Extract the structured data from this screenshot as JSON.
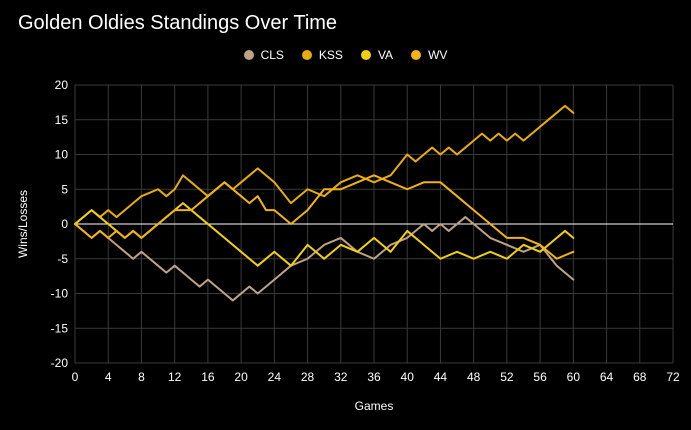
{
  "chart_data": {
    "type": "line",
    "title": "Golden Oldies Standings Over Time",
    "xlabel": "Games",
    "ylabel": "Wins/Losses",
    "xlim": [
      0,
      72
    ],
    "ylim": [
      -20,
      20
    ],
    "xticks": [
      0,
      4,
      8,
      12,
      16,
      20,
      24,
      28,
      32,
      36,
      40,
      44,
      48,
      52,
      56,
      60,
      64,
      68,
      72
    ],
    "yticks": [
      20,
      15,
      10,
      5,
      0,
      -5,
      -10,
      -15,
      -20
    ],
    "grid": true,
    "legend_position": "top-center",
    "series": [
      {
        "name": "CLS",
        "color": "#bfa283",
        "x": [
          0,
          2,
          3,
          4,
          5,
          6,
          7,
          8,
          10,
          11,
          12,
          13,
          14,
          15,
          16,
          17,
          18,
          19,
          20,
          21,
          22,
          24,
          26,
          28,
          30,
          32,
          34,
          36,
          38,
          40,
          42,
          43,
          44,
          45,
          46,
          47,
          48,
          50,
          52,
          54,
          56,
          58,
          60
        ],
        "values": [
          0,
          -2,
          -1,
          -2,
          -3,
          -4,
          -5,
          -4,
          -6,
          -7,
          -6,
          -7,
          -8,
          -9,
          -8,
          -9,
          -10,
          -11,
          -10,
          -9,
          -10,
          -8,
          -6,
          -5,
          -3,
          -2,
          -4,
          -5,
          -3,
          -2,
          0,
          -1,
          0,
          -1,
          0,
          1,
          0,
          -2,
          -3,
          -4,
          -3,
          -6,
          -8
        ]
      },
      {
        "name": "KSS",
        "color": "#e8ac0e",
        "x": [
          0,
          2,
          3,
          4,
          5,
          6,
          7,
          8,
          10,
          11,
          12,
          13,
          14,
          15,
          16,
          17,
          18,
          19,
          20,
          22,
          24,
          26,
          28,
          30,
          32,
          34,
          36,
          38,
          40,
          41,
          42,
          43,
          44,
          45,
          46,
          47,
          48,
          49,
          50,
          51,
          52,
          53,
          54,
          56,
          58,
          59,
          60
        ],
        "values": [
          0,
          2,
          1,
          2,
          1,
          2,
          3,
          4,
          5,
          4,
          5,
          7,
          6,
          5,
          4,
          5,
          6,
          5,
          6,
          8,
          6,
          3,
          5,
          4,
          6,
          7,
          6,
          7,
          10,
          9,
          10,
          11,
          10,
          11,
          10,
          11,
          12,
          13,
          12,
          13,
          12,
          13,
          12,
          14,
          16,
          17,
          16
        ]
      },
      {
        "name": "VA",
        "color": "#f2d00f",
        "x": [
          0,
          1,
          2,
          3,
          4,
          5,
          6,
          7,
          8,
          9,
          10,
          11,
          12,
          13,
          14,
          15,
          16,
          17,
          18,
          20,
          22,
          24,
          25,
          26,
          28,
          30,
          32,
          34,
          36,
          38,
          40,
          42,
          44,
          46,
          48,
          50,
          52,
          54,
          56,
          58,
          59,
          60
        ],
        "values": [
          0,
          1,
          2,
          1,
          0,
          -1,
          -2,
          -1,
          -2,
          -1,
          0,
          1,
          2,
          3,
          2,
          1,
          0,
          -1,
          -2,
          -4,
          -6,
          -4,
          -5,
          -6,
          -3,
          -5,
          -3,
          -4,
          -2,
          -4,
          -1,
          -3,
          -5,
          -4,
          -5,
          -4,
          -5,
          -3,
          -4,
          -2,
          -1,
          -2
        ]
      },
      {
        "name": "WV",
        "color": "#f3b312",
        "x": [
          0,
          2,
          3,
          4,
          5,
          6,
          7,
          8,
          9,
          10,
          12,
          14,
          16,
          18,
          20,
          21,
          22,
          23,
          24,
          26,
          28,
          30,
          32,
          34,
          36,
          38,
          40,
          42,
          44,
          46,
          48,
          50,
          52,
          54,
          56,
          58,
          60
        ],
        "values": [
          0,
          -2,
          -1,
          -2,
          -1,
          -2,
          -1,
          -2,
          -1,
          0,
          2,
          2,
          4,
          6,
          4,
          3,
          4,
          2,
          2,
          0,
          2,
          5,
          5,
          6,
          7,
          6,
          5,
          6,
          6,
          4,
          2,
          0,
          -2,
          -2,
          -3,
          -5,
          -4
        ]
      }
    ]
  }
}
